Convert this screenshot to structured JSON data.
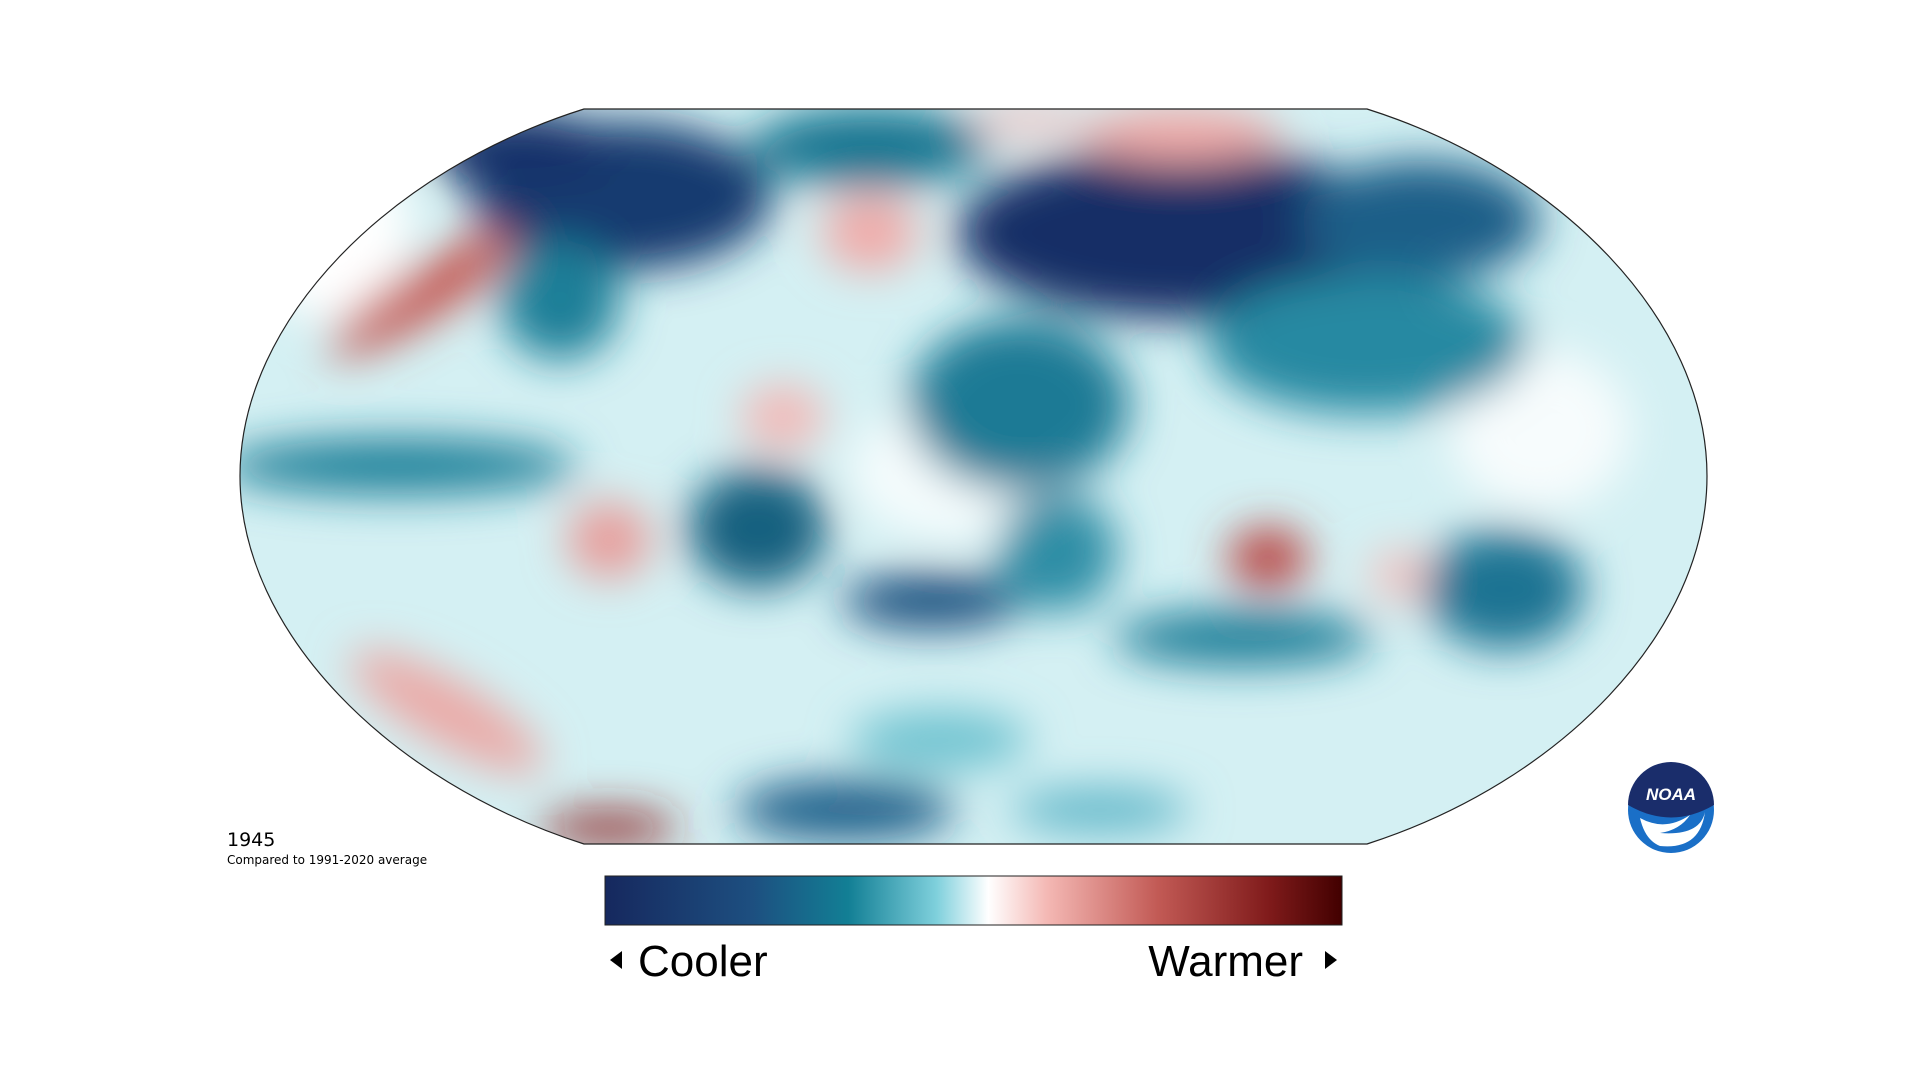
{
  "map": {
    "year": "1945",
    "subtitle": "Compared to 1991-2020 average"
  },
  "legend": {
    "low": "Cooler",
    "high": "Warmer"
  },
  "logo": {
    "text": "NOAA"
  }
}
